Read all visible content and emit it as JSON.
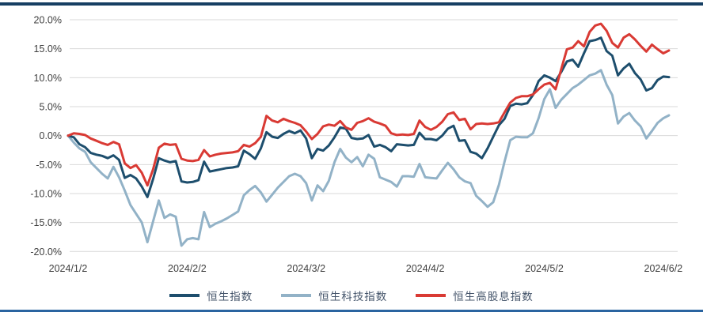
{
  "page": {
    "background": "#ffffff",
    "top_border_color": "#163f63",
    "bottom_border_color": "#2a64a0"
  },
  "chart_data": {
    "type": "line",
    "title": "",
    "grid": true,
    "legend_position": "bottom",
    "axis_text_color": "#3f3f3f",
    "gridline_color": "#d9d9d9",
    "y_axis": {
      "min": -20,
      "max": 20,
      "step": 5,
      "unit": "%",
      "tick_labels": [
        "20.0%",
        "15.0%",
        "10.0%",
        "5.0%",
        "0.0%",
        "-5.0%",
        "-10.0%",
        "-15.0%",
        "-20.0%"
      ]
    },
    "x_axis": {
      "tick_labels": [
        "2024/1/2",
        "2024/2/2",
        "2024/3/2",
        "2024/4/2",
        "2024/5/2",
        "2024/6/2"
      ],
      "tick_indices": [
        0,
        21,
        42,
        63,
        84,
        105
      ],
      "total_points": 107
    },
    "series": [
      {
        "name": "恒生指数",
        "color": "#1d4e6d",
        "values": [
          0.0,
          -0.3,
          -1.5,
          -2.0,
          -3.0,
          -3.3,
          -3.5,
          -3.9,
          -3.4,
          -4.2,
          -7.3,
          -6.8,
          -7.4,
          -8.8,
          -10.6,
          -7.5,
          -3.9,
          -4.3,
          -4.6,
          -4.4,
          -7.9,
          -8.1,
          -8.0,
          -7.7,
          -4.5,
          -6.2,
          -6.0,
          -5.8,
          -5.6,
          -5.5,
          -5.3,
          -2.6,
          -3.2,
          -4.0,
          -2.2,
          0.6,
          -0.2,
          -0.4,
          0.3,
          0.8,
          0.4,
          0.9,
          -0.5,
          -3.9,
          -2.3,
          -2.6,
          -1.7,
          -0.3,
          1.4,
          1.2,
          -0.4,
          -0.6,
          -0.5,
          0.1,
          -1.9,
          -1.6,
          -2.0,
          -2.7,
          -1.5,
          -1.6,
          -1.7,
          -1.6,
          0.5,
          -0.6,
          -0.6,
          -0.8,
          0.0,
          1.2,
          1.7,
          -0.9,
          -0.8,
          -2.8,
          -3.1,
          -3.9,
          -2.2,
          -0.2,
          1.8,
          2.9,
          5.1,
          5.5,
          5.4,
          5.6,
          7.0,
          9.4,
          10.4,
          10.0,
          9.4,
          11.0,
          12.8,
          13.1,
          11.9,
          14.2,
          16.3,
          16.5,
          16.9,
          14.6,
          13.8,
          10.4,
          11.6,
          12.4,
          10.8,
          9.7,
          7.8,
          8.2,
          9.6,
          10.2,
          10.1
        ]
      },
      {
        "name": "恒生科技指数",
        "color": "#92b2c7",
        "values": [
          0.0,
          -1.2,
          -2.2,
          -2.8,
          -4.6,
          -5.6,
          -6.6,
          -7.4,
          -5.4,
          -7.2,
          -9.5,
          -12.0,
          -13.5,
          -15.0,
          -18.4,
          -14.8,
          -11.2,
          -14.2,
          -13.6,
          -14.0,
          -19.0,
          -17.9,
          -17.7,
          -17.9,
          -13.2,
          -15.8,
          -15.2,
          -14.8,
          -14.3,
          -13.7,
          -13.1,
          -10.3,
          -9.4,
          -8.7,
          -9.8,
          -11.4,
          -10.2,
          -9.0,
          -8.0,
          -7.0,
          -6.6,
          -7.0,
          -8.2,
          -11.2,
          -8.6,
          -9.6,
          -7.8,
          -4.6,
          -2.3,
          -3.8,
          -4.6,
          -3.7,
          -5.3,
          -3.3,
          -4.0,
          -7.2,
          -7.6,
          -8.0,
          -8.8,
          -7.0,
          -7.0,
          -7.1,
          -4.9,
          -7.2,
          -7.3,
          -7.4,
          -6.0,
          -4.7,
          -5.8,
          -7.2,
          -7.9,
          -8.2,
          -10.4,
          -11.3,
          -12.3,
          -11.5,
          -8.5,
          -4.5,
          -0.8,
          -0.2,
          -0.3,
          -0.3,
          0.4,
          3.0,
          6.3,
          8.0,
          4.8,
          6.2,
          7.2,
          8.2,
          8.8,
          9.6,
          10.4,
          10.7,
          11.3,
          8.8,
          7.0,
          2.1,
          3.3,
          3.9,
          2.6,
          1.6,
          -0.5,
          0.8,
          2.2,
          3.0,
          3.5
        ]
      },
      {
        "name": "恒生高股息指数",
        "color": "#d93a34",
        "values": [
          0.0,
          0.4,
          0.3,
          0.1,
          -0.5,
          -0.9,
          -1.3,
          -1.6,
          -1.1,
          -1.5,
          -4.8,
          -5.6,
          -5.1,
          -6.4,
          -8.6,
          -5.8,
          -2.1,
          -1.4,
          -1.6,
          -1.5,
          -4.0,
          -4.3,
          -4.4,
          -4.2,
          -2.5,
          -3.6,
          -3.3,
          -3.1,
          -3.0,
          -2.9,
          -2.7,
          -1.6,
          -1.9,
          -1.3,
          -0.2,
          3.4,
          2.6,
          2.3,
          2.9,
          2.5,
          2.2,
          1.8,
          0.7,
          -0.6,
          0.3,
          1.6,
          1.9,
          1.7,
          2.5,
          1.4,
          1.0,
          2.2,
          2.5,
          3.0,
          2.4,
          2.1,
          1.7,
          0.4,
          0.1,
          0.2,
          0.1,
          0.3,
          2.6,
          1.5,
          1.0,
          1.5,
          2.4,
          3.7,
          4.0,
          2.7,
          2.9,
          1.1,
          2.0,
          2.1,
          2.0,
          2.1,
          2.3,
          4.0,
          5.7,
          6.5,
          6.8,
          6.8,
          7.1,
          8.0,
          8.8,
          9.1,
          8.0,
          11.5,
          14.9,
          15.2,
          16.3,
          15.4,
          17.9,
          19.0,
          19.3,
          18.1,
          16.0,
          15.2,
          16.9,
          17.5,
          16.6,
          15.5,
          14.5,
          15.7,
          14.9,
          14.2,
          14.7
        ]
      }
    ]
  }
}
